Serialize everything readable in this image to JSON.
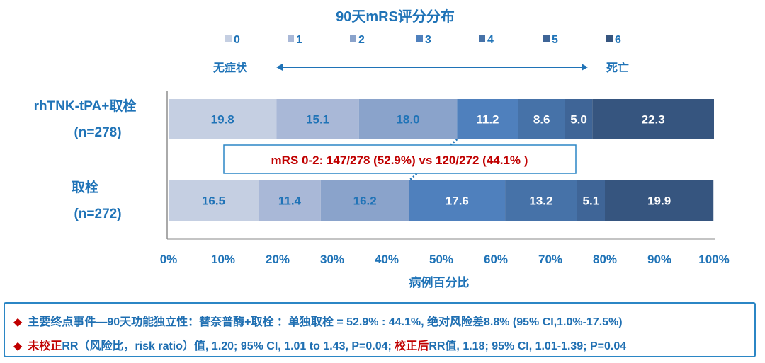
{
  "chart_data": {
    "type": "bar",
    "orientation": "horizontal",
    "stacked": true,
    "title": "90天mRS评分分布",
    "legend": [
      "0",
      "1",
      "2",
      "3",
      "4",
      "5",
      "6"
    ],
    "legend_placement": "top",
    "scale_left_label": "无症状",
    "scale_right_label": "死亡",
    "colors": [
      "#c5cfe2",
      "#a9b8d7",
      "#8aa3cb",
      "#4f80bd",
      "#4672a8",
      "#3f6597",
      "#36557f"
    ],
    "label_colors": [
      "#1f73b7",
      "#1f73b7",
      "#1f73b7",
      "#ffffff",
      "#ffffff",
      "#ffffff",
      "#ffffff"
    ],
    "categories": [
      {
        "name": "rhTNK-tPA+取栓",
        "n": "(n=278)",
        "values": [
          19.8,
          15.1,
          18.0,
          11.2,
          8.6,
          5.0,
          22.3
        ]
      },
      {
        "name": "取栓",
        "n": "(n=272)",
        "values": [
          16.5,
          11.4,
          16.2,
          17.6,
          13.2,
          5.1,
          19.9
        ]
      }
    ],
    "xlim": [
      0,
      100
    ],
    "xticks": [
      "0%",
      "10%",
      "20%",
      "30%",
      "40%",
      "50%",
      "60%",
      "70%",
      "80%",
      "90%",
      "100%"
    ],
    "xlabel": "病例百分比",
    "annotation": "mRS 0-2: 147/278 (52.9%) vs 120/272 (44.1% )",
    "annotation_color": "#c00000",
    "grid": false
  },
  "notes": {
    "line1": "主要终点事件—90天功能独立性：替奈普酶+取栓 ：单独取栓 = 52.9% : 44.1%, 绝对风险差8.8% (95% CI,1.0%-17.5%)",
    "line2_red1": "未校正",
    "line2_a": "RR（风险比，risk ratio）值, 1.20; 95% CI, 1.01 to 1.43, P=0.04; ",
    "line2_red2": "校正后",
    "line2_b": "RR值, 1.18; 95% CI, 1.01-1.39; P=0.04",
    "bullet": "◆"
  }
}
